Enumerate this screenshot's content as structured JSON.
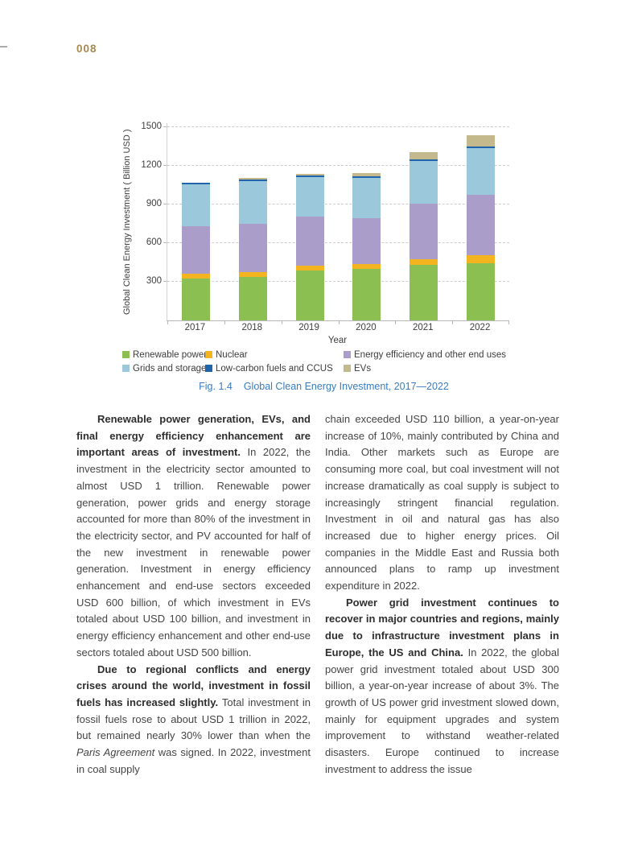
{
  "page": {
    "number": "008"
  },
  "figure": {
    "caption_label": "Fig. 1.4",
    "caption_title": "Global Clean Energy Investment, 2017—2022"
  },
  "chart_data": {
    "type": "bar",
    "stacked": true,
    "title": "",
    "xlabel": "Year",
    "ylabel": "Global Clean Energy Investment ( Billion USD )",
    "categories": [
      "2017",
      "2018",
      "2019",
      "2020",
      "2021",
      "2022"
    ],
    "series": [
      {
        "name": "Renewable power",
        "color": "#8cbf51",
        "values": [
          322,
          340,
          385,
          400,
          430,
          445
        ]
      },
      {
        "name": "Nuclear",
        "color": "#f3b420",
        "values": [
          40,
          38,
          40,
          40,
          45,
          60
        ]
      },
      {
        "name": "Energy efficiency and other end uses",
        "color": "#ab9dc9",
        "values": [
          372,
          375,
          380,
          355,
          430,
          470
        ]
      },
      {
        "name": "Grids and storage",
        "color": "#9bc8da",
        "values": [
          320,
          330,
          310,
          310,
          330,
          360
        ]
      },
      {
        "name": "Low-carbon fuels and CCUS",
        "color": "#2065ac",
        "values": [
          14,
          12,
          12,
          15,
          15,
          18
        ]
      },
      {
        "name": "EVs",
        "color": "#c3b98d",
        "values": [
          2,
          10,
          13,
          25,
          55,
          82
        ]
      }
    ],
    "totals": [
      1070,
      1105,
      1140,
      1145,
      1305,
      1435
    ],
    "ylim": [
      0,
      1500
    ],
    "yticks": [
      300,
      600,
      900,
      1200,
      1500
    ],
    "grid": "dashed-horizontal",
    "legend_position": "below",
    "legend_rows": [
      [
        0,
        1,
        2
      ],
      [
        3,
        4,
        5
      ]
    ],
    "accent_colors": {
      "caption_blue": "#3a7cc0",
      "page_number_gold": "#a9884e"
    }
  },
  "body": {
    "columns": [
      {
        "paragraphs": [
          {
            "indent": true,
            "runs": [
              {
                "t": "Renewable power generation, EVs, and final energy efficiency enhancement are important areas of investment. ",
                "s": "b"
              },
              {
                "t": "In 2022, the investment in the electricity sector amounted to almost USD 1 trillion. Renewable power generation, power grids and energy storage accounted for more than 80% of the investment in the electricity sector, and PV accounted for half of the new investment in renewable power generation. Investment in energy efficiency enhancement and end-use sectors exceeded USD 600 billion, of which investment in EVs totaled about USD 100 billion, and investment in energy efficiency enhancement and other end-use sectors totaled about USD 500 billion.",
                "s": "r"
              }
            ]
          },
          {
            "indent": true,
            "runs": [
              {
                "t": "Due to regional conflicts and energy crises around the world, investment in fossil fuels has increased slightly. ",
                "s": "b"
              },
              {
                "t": "Total investment in fossil fuels rose to about USD 1 trillion in 2022, but remained nearly 30% lower than when the ",
                "s": "r"
              },
              {
                "t": "Paris Agreement",
                "s": "i"
              },
              {
                "t": " was signed. In 2022, investment in coal supply",
                "s": "r"
              }
            ]
          }
        ]
      },
      {
        "paragraphs": [
          {
            "indent": false,
            "runs": [
              {
                "t": "chain exceeded USD 110 billion, a year-on-year increase of 10%, mainly contributed by China and India. Other markets such as Europe are consuming more coal, but coal investment will not increase dramatically as coal supply is subject to increasingly stringent financial regulation. Investment in oil and natural gas has also increased due to higher energy prices. Oil companies in the Middle East and Russia both announced plans to ramp up investment expenditure in 2022.",
                "s": "r"
              }
            ]
          },
          {
            "indent": true,
            "runs": [
              {
                "t": "Power grid investment continues to recover in major countries and regions, mainly due to infrastructure investment plans in Europe, the US and China. ",
                "s": "b"
              },
              {
                "t": "In 2022, the global power grid investment totaled about USD 300 billion, a year-on-year increase of about 3%. The growth of US power grid investment slowed down, mainly for equipment upgrades and system improvement to withstand weather-related disasters. Europe continued to increase investment to address the issue",
                "s": "r"
              }
            ]
          }
        ]
      }
    ]
  }
}
